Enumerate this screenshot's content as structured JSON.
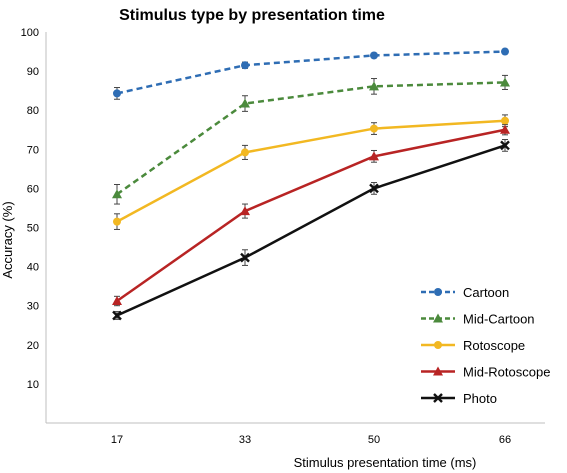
{
  "chart_data": {
    "type": "line",
    "title": "Stimulus type by presentation time",
    "xlabel": "Stimulus presentation time (ms)",
    "ylabel": "Accuracy (%)",
    "categories": [
      "17",
      "33",
      "50",
      "66"
    ],
    "ylim": [
      0,
      100
    ],
    "yticks": [
      "10",
      "20",
      "30",
      "40",
      "50",
      "60",
      "70",
      "80",
      "90",
      "100"
    ],
    "grid": false,
    "legend_position": "bottom-right",
    "series": [
      {
        "name": "Cartoon",
        "values": [
          84.3,
          91.5,
          94.0,
          95.0
        ],
        "errors": [
          1.5,
          0.8,
          0.6,
          0.6
        ],
        "color": "#2e6db4",
        "marker": "circle",
        "dashed": true
      },
      {
        "name": "Mid-Cartoon",
        "values": [
          58.5,
          81.7,
          86.1,
          87.1
        ],
        "errors": [
          2.5,
          2.0,
          2.0,
          1.8
        ],
        "color": "#4b8a3c",
        "marker": "triangle",
        "dashed": true
      },
      {
        "name": "Rotoscope",
        "values": [
          51.5,
          69.2,
          75.3,
          77.3
        ],
        "errors": [
          2.0,
          1.8,
          1.5,
          1.5
        ],
        "color": "#f2b822",
        "marker": "circle",
        "dashed": false
      },
      {
        "name": "Mid-Rotoscope",
        "values": [
          31.2,
          54.2,
          68.2,
          75.0
        ],
        "errors": [
          1.2,
          1.8,
          1.5,
          1.3
        ],
        "color": "#b82424",
        "marker": "triangle",
        "dashed": false
      },
      {
        "name": "Photo",
        "values": [
          27.5,
          42.3,
          60.0,
          71.0
        ],
        "errors": [
          1.0,
          2.0,
          1.5,
          1.5
        ],
        "color": "#111111",
        "marker": "x",
        "dashed": false
      }
    ]
  }
}
